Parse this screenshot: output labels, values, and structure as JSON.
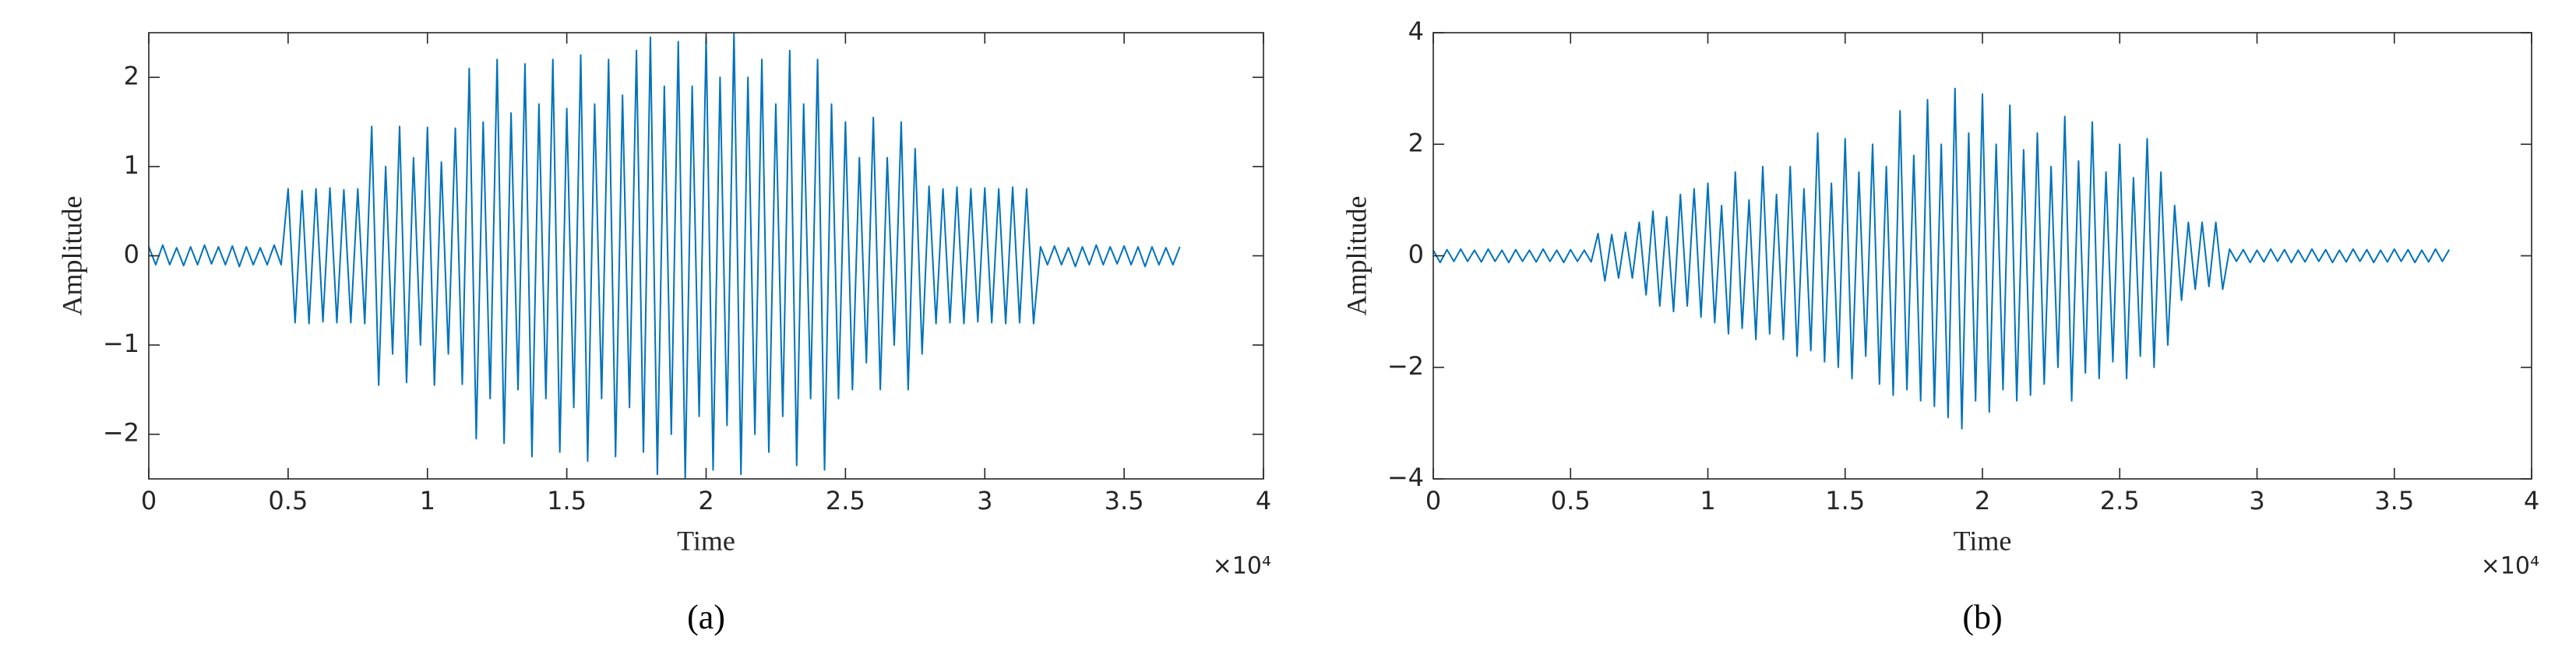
{
  "chart_data": [
    {
      "type": "line",
      "color": "#0072bd",
      "xlabel": "Time",
      "ylabel": "Amplitude",
      "x_exponent": "×10⁴",
      "caption": "(a)",
      "xlim": [
        0,
        40000
      ],
      "ylim": [
        -2.5,
        2.5
      ],
      "xticks": [
        {
          "value": 0,
          "label": "0"
        },
        {
          "value": 5000,
          "label": "0.5"
        },
        {
          "value": 10000,
          "label": "1"
        },
        {
          "value": 15000,
          "label": "1.5"
        },
        {
          "value": 20000,
          "label": "2"
        },
        {
          "value": 25000,
          "label": "2.5"
        },
        {
          "value": 30000,
          "label": "3"
        },
        {
          "value": 35000,
          "label": "3.5"
        },
        {
          "value": 40000,
          "label": "4"
        }
      ],
      "yticks": [
        {
          "value": -2,
          "label": "−2"
        },
        {
          "value": -1,
          "label": "−1"
        },
        0,
        1,
        2
      ],
      "x": [
        0,
        250,
        500,
        750,
        1000,
        1250,
        1500,
        1750,
        2000,
        2250,
        2500,
        2750,
        3000,
        3250,
        3500,
        3750,
        4000,
        4250,
        4500,
        4750,
        5000,
        5250,
        5500,
        5750,
        6000,
        6250,
        6500,
        6750,
        7000,
        7250,
        7500,
        7750,
        8000,
        8250,
        8500,
        8750,
        9000,
        9250,
        9500,
        9750,
        10000,
        10250,
        10500,
        10750,
        11000,
        11250,
        11500,
        11750,
        12000,
        12250,
        12500,
        12750,
        13000,
        13250,
        13500,
        13750,
        14000,
        14250,
        14500,
        14750,
        15000,
        15250,
        15500,
        15750,
        16000,
        16250,
        16500,
        16750,
        17000,
        17250,
        17500,
        17750,
        18000,
        18250,
        18500,
        18750,
        19000,
        19250,
        19500,
        19750,
        20000,
        20250,
        20500,
        20750,
        21000,
        21250,
        21500,
        21750,
        22000,
        22250,
        22500,
        22750,
        23000,
        23250,
        23500,
        23750,
        24000,
        24250,
        24500,
        24750,
        25000,
        25250,
        25500,
        25750,
        26000,
        26250,
        26500,
        26750,
        27000,
        27250,
        27500,
        27750,
        28000,
        28250,
        28500,
        28750,
        29000,
        29250,
        29500,
        29750,
        30000,
        30250,
        30500,
        30750,
        31000,
        31250,
        31500,
        31750,
        32000,
        32250,
        32500,
        32750,
        33000,
        33250,
        33500,
        33750,
        34000,
        34250,
        34500,
        34750,
        35000,
        35250,
        35500,
        35750,
        36000,
        36250,
        36500,
        36750,
        37000
      ],
      "values": [
        0.1,
        -0.1,
        0.12,
        -0.1,
        0.09,
        -0.11,
        0.1,
        -0.1,
        0.12,
        -0.09,
        0.1,
        -0.1,
        0.11,
        -0.12,
        0.1,
        -0.1,
        0.09,
        -0.1,
        0.12,
        -0.1,
        0.75,
        -0.75,
        0.73,
        -0.76,
        0.75,
        -0.74,
        0.76,
        -0.75,
        0.74,
        -0.75,
        0.75,
        -0.76,
        1.45,
        -1.45,
        1.0,
        -1.1,
        1.45,
        -1.42,
        1.1,
        -1.0,
        1.44,
        -1.45,
        1.05,
        -1.1,
        1.43,
        -1.44,
        2.1,
        -2.05,
        1.5,
        -1.6,
        2.2,
        -2.1,
        1.6,
        -1.5,
        2.15,
        -2.25,
        1.7,
        -1.6,
        2.2,
        -2.2,
        1.65,
        -1.7,
        2.25,
        -2.3,
        1.7,
        -1.6,
        2.2,
        -2.25,
        1.8,
        -1.7,
        2.3,
        -2.2,
        2.45,
        -2.45,
        1.9,
        -2.0,
        2.4,
        -2.5,
        1.9,
        -1.8,
        2.45,
        -2.4,
        2.0,
        -1.9,
        2.5,
        -2.45,
        2.0,
        -2.0,
        2.2,
        -2.2,
        1.7,
        -1.8,
        2.3,
        -2.35,
        1.7,
        -1.6,
        2.2,
        -2.4,
        1.7,
        -1.6,
        1.5,
        -1.5,
        1.1,
        -1.2,
        1.55,
        -1.5,
        1.1,
        -1.0,
        1.5,
        -1.5,
        1.2,
        -1.1,
        0.78,
        -0.76,
        0.75,
        -0.75,
        0.77,
        -0.76,
        0.75,
        -0.74,
        0.76,
        -0.75,
        0.75,
        -0.76,
        0.77,
        -0.75,
        0.75,
        -0.76,
        0.1,
        -0.1,
        0.11,
        -0.1,
        0.09,
        -0.12,
        0.1,
        -0.1,
        0.12,
        -0.1,
        0.1,
        -0.09,
        0.11,
        -0.1,
        0.1,
        -0.12,
        0.1,
        -0.1,
        0.09,
        -0.1,
        0.1
      ]
    },
    {
      "type": "line",
      "color": "#0072bd",
      "xlabel": "Time",
      "ylabel": "Amplitude",
      "x_exponent": "×10⁴",
      "caption": "(b)",
      "xlim": [
        0,
        40000
      ],
      "ylim": [
        -4,
        4
      ],
      "xticks": [
        {
          "value": 0,
          "label": "0"
        },
        {
          "value": 5000,
          "label": "0.5"
        },
        {
          "value": 10000,
          "label": "1"
        },
        {
          "value": 15000,
          "label": "1.5"
        },
        {
          "value": 20000,
          "label": "2"
        },
        {
          "value": 25000,
          "label": "2.5"
        },
        {
          "value": 30000,
          "label": "3"
        },
        {
          "value": 35000,
          "label": "3.5"
        },
        {
          "value": 40000,
          "label": "4"
        }
      ],
      "yticks": [
        {
          "value": -4,
          "label": "−4"
        },
        {
          "value": -2,
          "label": "−2"
        },
        0,
        2,
        4
      ],
      "x": [
        0,
        250,
        500,
        750,
        1000,
        1250,
        1500,
        1750,
        2000,
        2250,
        2500,
        2750,
        3000,
        3250,
        3500,
        3750,
        4000,
        4250,
        4500,
        4750,
        5000,
        5250,
        5500,
        5750,
        6000,
        6250,
        6500,
        6750,
        7000,
        7250,
        7500,
        7750,
        8000,
        8250,
        8500,
        8750,
        9000,
        9250,
        9500,
        9750,
        10000,
        10250,
        10500,
        10750,
        11000,
        11250,
        11500,
        11750,
        12000,
        12250,
        12500,
        12750,
        13000,
        13250,
        13500,
        13750,
        14000,
        14250,
        14500,
        14750,
        15000,
        15250,
        15500,
        15750,
        16000,
        16250,
        16500,
        16750,
        17000,
        17250,
        17500,
        17750,
        18000,
        18250,
        18500,
        18750,
        19000,
        19250,
        19500,
        19750,
        20000,
        20250,
        20500,
        20750,
        21000,
        21250,
        21500,
        21750,
        22000,
        22250,
        22500,
        22750,
        23000,
        23250,
        23500,
        23750,
        24000,
        24250,
        24500,
        24750,
        25000,
        25250,
        25500,
        25750,
        26000,
        26250,
        26500,
        26750,
        27000,
        27250,
        27500,
        27750,
        28000,
        28250,
        28500,
        28750,
        29000,
        29250,
        29500,
        29750,
        30000,
        30250,
        30500,
        30750,
        31000,
        31250,
        31500,
        31750,
        32000,
        32250,
        32500,
        32750,
        33000,
        33250,
        33500,
        33750,
        34000,
        34250,
        34500,
        34750,
        35000,
        35250,
        35500,
        35750,
        36000,
        36250,
        36500,
        36750,
        37000
      ],
      "values": [
        0.1,
        -0.12,
        0.11,
        -0.1,
        0.12,
        -0.1,
        0.1,
        -0.11,
        0.12,
        -0.1,
        0.1,
        -0.12,
        0.11,
        -0.1,
        0.1,
        -0.11,
        0.12,
        -0.1,
        0.1,
        -0.12,
        0.11,
        -0.1,
        0.1,
        -0.11,
        0.4,
        -0.45,
        0.38,
        -0.4,
        0.42,
        -0.4,
        0.6,
        -0.7,
        0.8,
        -0.9,
        0.7,
        -1.0,
        1.1,
        -0.9,
        1.2,
        -1.1,
        1.3,
        -1.2,
        0.9,
        -1.4,
        1.5,
        -1.3,
        1.0,
        -1.5,
        1.6,
        -1.4,
        1.1,
        -1.5,
        1.6,
        -1.8,
        1.2,
        -1.7,
        2.2,
        -1.9,
        1.3,
        -2.0,
        2.1,
        -2.2,
        1.5,
        -1.8,
        2.0,
        -2.3,
        1.6,
        -2.5,
        2.6,
        -2.4,
        1.8,
        -2.6,
        2.8,
        -2.7,
        2.0,
        -2.9,
        3.0,
        -3.1,
        2.2,
        -2.6,
        2.9,
        -2.8,
        2.0,
        -2.4,
        2.7,
        -2.6,
        1.9,
        -2.5,
        2.2,
        -2.3,
        1.6,
        -2.0,
        2.5,
        -2.6,
        1.7,
        -2.1,
        2.4,
        -2.2,
        1.5,
        -1.9,
        2.0,
        -2.2,
        1.4,
        -1.8,
        2.1,
        -2.0,
        1.5,
        -1.6,
        0.9,
        -0.8,
        0.6,
        -0.6,
        0.6,
        -0.55,
        0.6,
        -0.6,
        0.12,
        -0.1,
        0.11,
        -0.12,
        0.1,
        -0.11,
        0.12,
        -0.1,
        0.11,
        -0.12,
        0.1,
        -0.11,
        0.12,
        -0.1,
        0.11,
        -0.12,
        0.1,
        -0.11,
        0.12,
        -0.1,
        0.11,
        -0.12,
        0.1,
        -0.11,
        0.12,
        -0.1,
        0.11,
        -0.12,
        0.1,
        -0.11,
        0.12,
        -0.1,
        0.11
      ]
    }
  ]
}
